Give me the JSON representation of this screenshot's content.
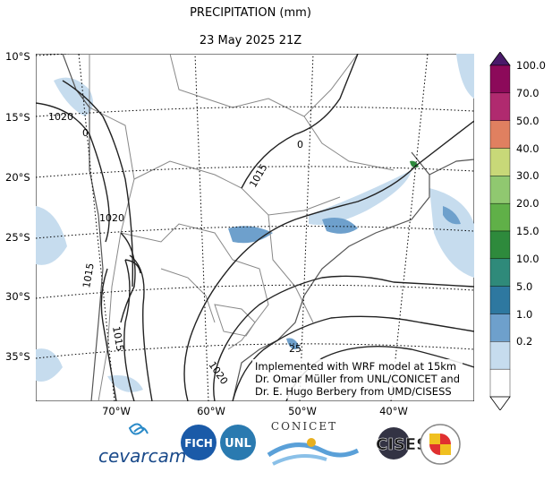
{
  "title": {
    "line1": "PRECIPITATION (mm)",
    "line2": "23 May 2025 21Z"
  },
  "map": {
    "lat_labels": [
      "10°S",
      "15°S",
      "20°S",
      "25°S",
      "30°S",
      "35°S"
    ],
    "lon_labels": [
      "70°W",
      "60°W",
      "50°W",
      "40°W"
    ],
    "isobar_labels": [
      "1020",
      "0",
      "1020",
      "1015",
      "1015",
      "1015",
      "0",
      "25",
      "1020"
    ]
  },
  "colorbar": {
    "levels": [
      "100.0",
      "70.0",
      "50.0",
      "40.0",
      "30.0",
      "20.0",
      "15.0",
      "10.0",
      "5.0",
      "1.0",
      "0.2"
    ],
    "colors": [
      "#8c0a5a",
      "#b02a6f",
      "#e08060",
      "#c8d878",
      "#90c870",
      "#60b048",
      "#2e8a3c",
      "#2f8a7a",
      "#2e78a0",
      "#6ea0cc",
      "#c6dcee",
      "#ffffff"
    ],
    "top_triangle_color": "#4a1a6a"
  },
  "credit": {
    "line1": "Implemented with WRF model at 15km",
    "line2": "Dr. Omar Müller from UNL/CONICET and",
    "line3": "Dr. E. Hugo Berbery from UMD/CISESS"
  },
  "logos": {
    "cevarcam": "cevarcam",
    "fich": "FICH",
    "unl": "UNL",
    "conicet": "CONICET",
    "cisess": "CISESS"
  }
}
